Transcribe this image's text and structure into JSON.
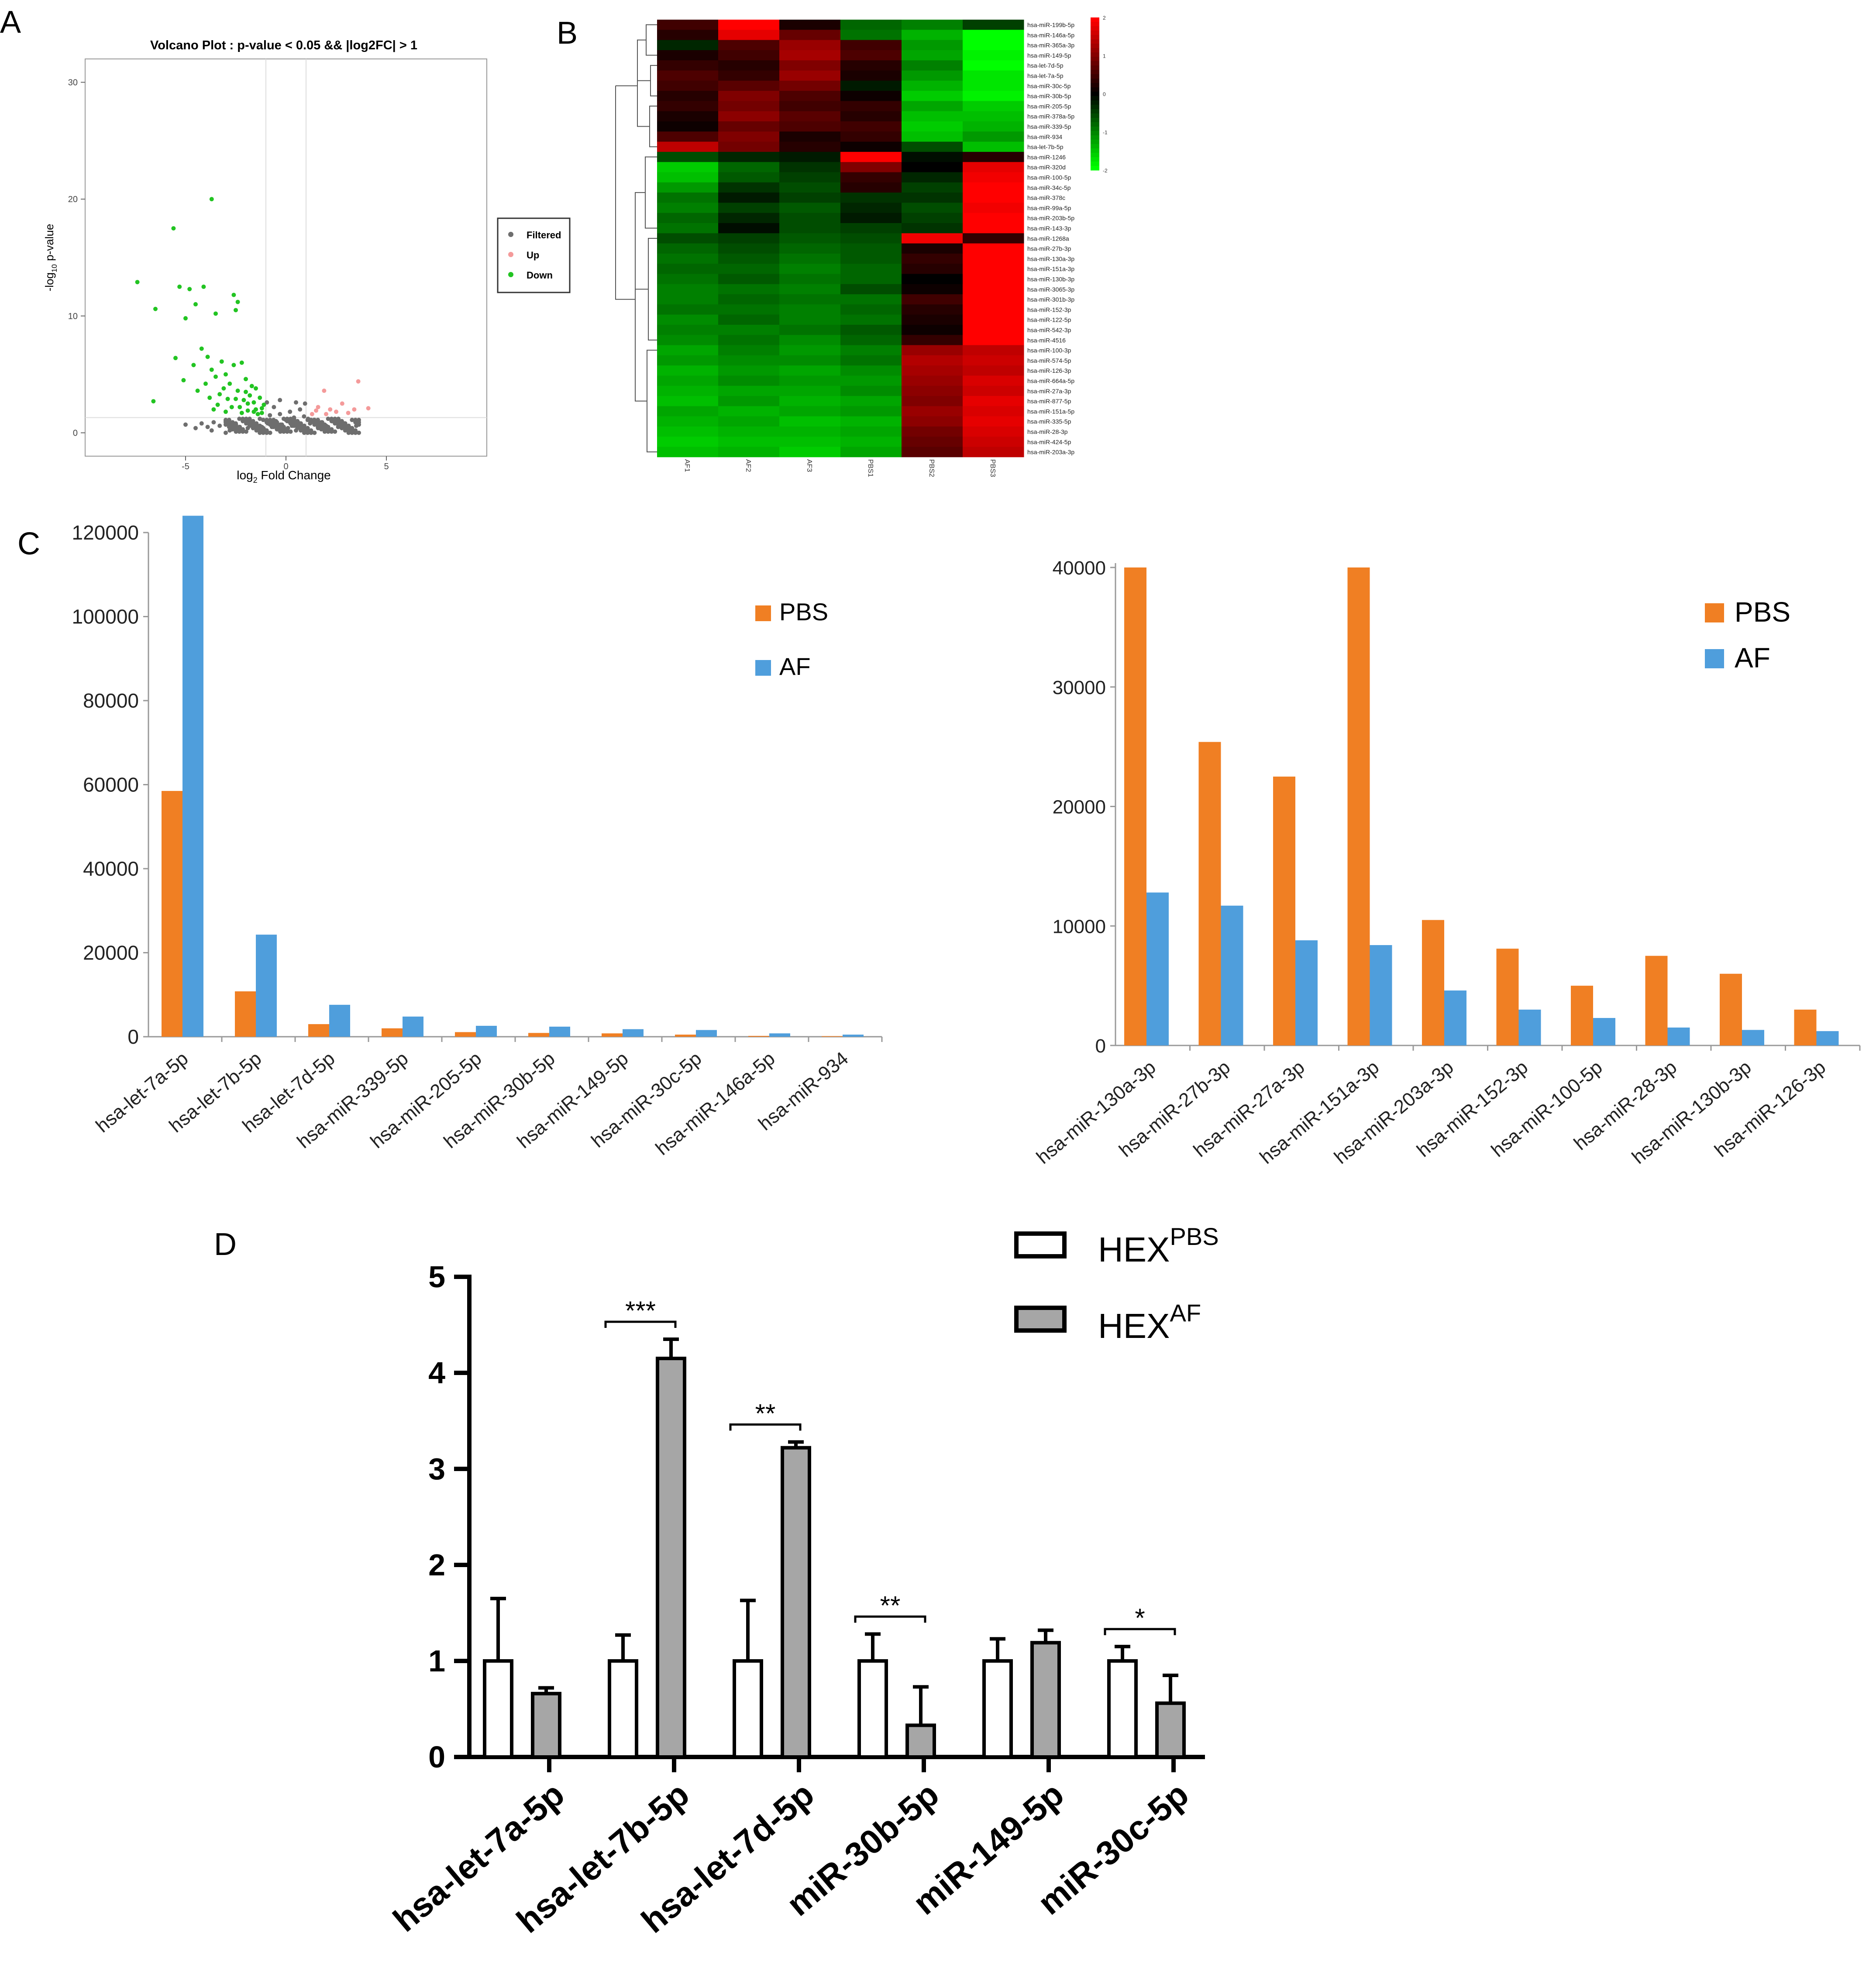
{
  "panel_labels": {
    "a": "A",
    "b": "B",
    "c": "C",
    "d": "D"
  },
  "colors": {
    "pbs_bar": "#F07F23",
    "af_bar": "#4F9EDC",
    "up_point": "#F49A9A",
    "down_point": "#22C422",
    "filtered_point": "#6E6E6E",
    "hex_af_bar": "#A6A6A6",
    "hex_pbs_bar": "#FFFFFF",
    "heatmap_high": "#FF0000",
    "heatmap_mid": "#000000",
    "heatmap_low": "#00FF00"
  },
  "chart_data": [
    {
      "id": "volcano",
      "type": "scatter",
      "title": "Volcano Plot : p-value < 0.05 && |log2FC| > 1",
      "xlabel_main": "log",
      "xlabel_sub": "2",
      "xlabel_rest": " Fold Change",
      "ylabel_main": "-log",
      "ylabel_sub": "10",
      "ylabel_rest": " p-value",
      "xlim": [
        -10,
        10
      ],
      "ylim": [
        -2,
        32
      ],
      "xticks": [
        -5,
        0,
        5
      ],
      "yticks": [
        0,
        10,
        20,
        30
      ],
      "threshold_lines": {
        "x": [
          -1,
          1
        ],
        "y": 1.3
      },
      "legend": [
        "Filtered",
        "Up",
        "Down"
      ],
      "legend_position": "right",
      "down_points": [
        [
          -3.7,
          20.0
        ],
        [
          -5.6,
          17.5
        ],
        [
          -7.4,
          12.9
        ],
        [
          -6.5,
          10.6
        ],
        [
          -5.3,
          12.5
        ],
        [
          -4.8,
          12.3
        ],
        [
          -4.5,
          11.0
        ],
        [
          -5.0,
          9.8
        ],
        [
          -4.1,
          12.5
        ],
        [
          -3.5,
          10.2
        ],
        [
          -2.6,
          11.8
        ],
        [
          -2.4,
          11.2
        ],
        [
          -2.5,
          10.5
        ],
        [
          -5.5,
          6.4
        ],
        [
          -6.6,
          2.7
        ],
        [
          -5.1,
          4.5
        ],
        [
          -4.6,
          5.8
        ],
        [
          -4.2,
          7.2
        ],
        [
          -3.9,
          6.5
        ],
        [
          -3.7,
          5.4
        ],
        [
          -3.5,
          4.8
        ],
        [
          -3.2,
          6.1
        ],
        [
          -3.0,
          5.0
        ],
        [
          -2.8,
          4.2
        ],
        [
          -2.6,
          5.8
        ],
        [
          -2.4,
          3.6
        ],
        [
          -2.2,
          6.0
        ],
        [
          -2.0,
          4.6
        ],
        [
          -1.8,
          3.2
        ],
        [
          -1.6,
          2.6
        ],
        [
          -1.5,
          2.0
        ],
        [
          -1.3,
          3.0
        ],
        [
          -1.2,
          1.7
        ],
        [
          -1.1,
          2.4
        ],
        [
          -4.4,
          3.6
        ],
        [
          -3.8,
          3.0
        ],
        [
          -3.4,
          2.4
        ],
        [
          -3.1,
          3.8
        ],
        [
          -2.9,
          2.9
        ],
        [
          -2.7,
          2.2
        ],
        [
          -2.5,
          2.9
        ],
        [
          -2.3,
          2.2
        ],
        [
          -2.1,
          2.8
        ],
        [
          -1.9,
          1.9
        ],
        [
          -1.7,
          4.0
        ],
        [
          -1.4,
          1.6
        ],
        [
          -4.0,
          4.2
        ],
        [
          -3.3,
          3.3
        ],
        [
          -2.2,
          1.7
        ],
        [
          -1.9,
          2.5
        ],
        [
          -1.6,
          1.8
        ],
        [
          -1.2,
          2.1
        ],
        [
          -3.6,
          2.0
        ],
        [
          -3.0,
          1.8
        ],
        [
          -2.0,
          3.5
        ],
        [
          -1.5,
          3.8
        ]
      ],
      "up_points": [
        [
          1.3,
          1.6
        ],
        [
          1.6,
          2.2
        ],
        [
          1.9,
          3.6
        ],
        [
          2.2,
          2.0
        ],
        [
          2.5,
          1.8
        ],
        [
          2.8,
          2.5
        ],
        [
          3.1,
          1.7
        ],
        [
          3.4,
          2.0
        ],
        [
          3.6,
          4.4
        ],
        [
          4.1,
          2.1
        ],
        [
          1.5,
          1.9
        ],
        [
          2.0,
          1.6
        ]
      ],
      "filtered_points": [
        [
          -4.5,
          0.4
        ],
        [
          -4.2,
          0.8
        ],
        [
          -3.9,
          0.5
        ],
        [
          -3.6,
          0.9
        ],
        [
          -3.3,
          0.6
        ],
        [
          -3.0,
          1.0
        ],
        [
          -2.7,
          0.3
        ],
        [
          -2.5,
          0.8
        ],
        [
          -2.3,
          0.5
        ],
        [
          -2.1,
          1.1
        ],
        [
          -1.9,
          0.4
        ],
        [
          -1.7,
          0.9
        ],
        [
          -1.5,
          0.6
        ],
        [
          -1.3,
          1.2
        ],
        [
          -1.1,
          0.3
        ],
        [
          -0.9,
          0.8
        ],
        [
          -0.8,
          1.5
        ],
        [
          -0.7,
          0.5
        ],
        [
          -0.6,
          2.2
        ],
        [
          -0.5,
          1.0
        ],
        [
          -0.4,
          0.3
        ],
        [
          -0.3,
          1.6
        ],
        [
          -0.2,
          0.7
        ],
        [
          -0.1,
          0.2
        ],
        [
          0.0,
          1.1
        ],
        [
          0.1,
          0.4
        ],
        [
          0.2,
          1.8
        ],
        [
          0.3,
          0.6
        ],
        [
          0.4,
          1.3
        ],
        [
          0.5,
          0.2
        ],
        [
          0.6,
          0.9
        ],
        [
          0.7,
          2.0
        ],
        [
          0.8,
          0.5
        ],
        [
          0.9,
          1.4
        ],
        [
          1.0,
          0.3
        ],
        [
          1.2,
          0.8
        ],
        [
          1.4,
          1.1
        ],
        [
          1.6,
          0.4
        ],
        [
          1.8,
          0.9
        ],
        [
          2.0,
          0.6
        ],
        [
          2.3,
          1.0
        ],
        [
          2.6,
          0.5
        ],
        [
          2.9,
          0.8
        ],
        [
          3.2,
          0.4
        ],
        [
          3.5,
          0.6
        ],
        [
          -5.0,
          0.7
        ],
        [
          -0.95,
          2.6
        ],
        [
          0.95,
          2.5
        ],
        [
          -2.8,
          0.2
        ],
        [
          -1.2,
          0.5
        ],
        [
          0.2,
          0.9
        ],
        [
          1.1,
          1.2
        ],
        [
          -0.3,
          2.8
        ],
        [
          0.5,
          2.6
        ],
        [
          -3.7,
          0.2
        ],
        [
          2.1,
          0.2
        ]
      ]
    },
    {
      "id": "heatmap",
      "type": "heatmap",
      "columns": [
        "AF1",
        "AF2",
        "AF3",
        "PBS1",
        "PBS2",
        "PBS3"
      ],
      "rows": [
        "hsa-miR-199b-5p",
        "hsa-miR-146a-5p",
        "hsa-miR-365a-3p",
        "hsa-miR-149-5p",
        "hsa-let-7d-5p",
        "hsa-let-7a-5p",
        "hsa-miR-30c-5p",
        "hsa-miR-30b-5p",
        "hsa-miR-205-5p",
        "hsa-miR-378a-5p",
        "hsa-miR-339-5p",
        "hsa-miR-934",
        "hsa-let-7b-5p",
        "hsa-miR-1246",
        "hsa-miR-320d",
        "hsa-miR-100-5p",
        "hsa-miR-34c-5p",
        "hsa-miR-378c",
        "hsa-miR-99a-5p",
        "hsa-miR-203b-5p",
        "hsa-miR-143-3p",
        "hsa-miR-1268a",
        "hsa-miR-27b-3p",
        "hsa-miR-130a-3p",
        "hsa-miR-151a-3p",
        "hsa-miR-130b-3p",
        "hsa-miR-3065-3p",
        "hsa-miR-301b-3p",
        "hsa-miR-152-3p",
        "hsa-miR-122-5p",
        "hsa-miR-542-3p",
        "hsa-miR-4516",
        "hsa-miR-100-3p",
        "hsa-miR-574-5p",
        "hsa-miR-126-3p",
        "hsa-miR-664a-5p",
        "hsa-miR-27a-3p",
        "hsa-miR-877-5p",
        "hsa-miR-151a-5p",
        "hsa-miR-335-5p",
        "hsa-miR-28-3p",
        "hsa-miR-424-5p",
        "hsa-miR-203a-3p"
      ],
      "values": [
        [
          0.5,
          2.0,
          0.2,
          -0.8,
          -1.0,
          -0.5
        ],
        [
          0.3,
          1.8,
          0.8,
          -0.9,
          -1.4,
          -2.0
        ],
        [
          -0.3,
          0.6,
          1.2,
          0.5,
          -1.2,
          -2.0
        ],
        [
          0.2,
          0.5,
          1.3,
          0.6,
          -1.3,
          -1.9
        ],
        [
          0.4,
          0.3,
          1.0,
          0.3,
          -1.0,
          -2.0
        ],
        [
          0.6,
          0.4,
          1.2,
          0.2,
          -1.2,
          -1.8
        ],
        [
          0.5,
          0.7,
          0.9,
          -0.2,
          -1.4,
          -1.8
        ],
        [
          0.3,
          1.0,
          0.6,
          0.1,
          -1.6,
          -1.9
        ],
        [
          0.4,
          0.9,
          0.5,
          0.4,
          -1.3,
          -1.6
        ],
        [
          0.2,
          1.1,
          0.7,
          0.3,
          -1.5,
          -1.5
        ],
        [
          0.1,
          0.8,
          0.6,
          0.5,
          -1.6,
          -1.4
        ],
        [
          0.6,
          1.0,
          0.2,
          0.4,
          -1.5,
          -1.2
        ],
        [
          1.5,
          0.9,
          0.3,
          0.1,
          -0.6,
          -1.5
        ],
        [
          -0.6,
          -0.3,
          -0.2,
          2.0,
          -0.1,
          0.3
        ],
        [
          -1.6,
          -0.8,
          -0.4,
          1.0,
          0.0,
          1.8
        ],
        [
          -1.5,
          -0.7,
          -0.5,
          0.4,
          -0.3,
          1.9
        ],
        [
          -1.2,
          -0.4,
          -0.6,
          0.3,
          -0.5,
          2.0
        ],
        [
          -0.9,
          -0.2,
          -0.5,
          -0.4,
          -0.4,
          2.0
        ],
        [
          -1.0,
          -0.5,
          -0.7,
          -0.3,
          -0.6,
          1.9
        ],
        [
          -0.8,
          -0.3,
          -0.6,
          -0.2,
          -0.5,
          2.0
        ],
        [
          -0.9,
          -0.1,
          -0.6,
          -0.5,
          -0.4,
          2.0
        ],
        [
          -0.6,
          -0.5,
          -0.7,
          -0.6,
          1.9,
          0.4
        ],
        [
          -0.8,
          -0.6,
          -0.8,
          -0.7,
          0.2,
          2.0
        ],
        [
          -0.9,
          -0.7,
          -0.9,
          -0.7,
          0.4,
          2.0
        ],
        [
          -0.8,
          -0.8,
          -1.0,
          -0.8,
          0.3,
          2.0
        ],
        [
          -0.9,
          -0.7,
          -0.9,
          -0.8,
          0.0,
          2.0
        ],
        [
          -1.0,
          -0.9,
          -1.0,
          -0.6,
          0.1,
          2.0
        ],
        [
          -1.0,
          -0.8,
          -0.9,
          -0.9,
          0.5,
          2.0
        ],
        [
          -0.9,
          -0.9,
          -1.0,
          -0.8,
          0.3,
          2.0
        ],
        [
          -1.1,
          -0.8,
          -1.0,
          -0.9,
          0.2,
          2.0
        ],
        [
          -1.0,
          -1.0,
          -0.9,
          -0.7,
          0.1,
          2.0
        ],
        [
          -1.1,
          -0.9,
          -1.1,
          -0.8,
          0.4,
          2.0
        ],
        [
          -1.3,
          -1.0,
          -1.2,
          -1.0,
          1.2,
          1.5
        ],
        [
          -1.2,
          -1.1,
          -1.1,
          -0.9,
          1.4,
          1.6
        ],
        [
          -1.4,
          -1.2,
          -1.3,
          -1.1,
          1.3,
          1.5
        ],
        [
          -1.3,
          -1.1,
          -1.2,
          -1.2,
          1.2,
          1.7
        ],
        [
          -1.4,
          -1.3,
          -1.3,
          -1.1,
          1.1,
          1.6
        ],
        [
          -1.5,
          -1.2,
          -1.4,
          -1.3,
          1.0,
          1.8
        ],
        [
          -1.3,
          -1.4,
          -1.3,
          -1.2,
          1.2,
          1.7
        ],
        [
          -1.4,
          -1.3,
          -1.5,
          -1.4,
          1.1,
          1.8
        ],
        [
          -1.5,
          -1.4,
          -1.4,
          -1.3,
          0.9,
          1.7
        ],
        [
          -1.6,
          -1.5,
          -1.5,
          -1.4,
          0.8,
          1.6
        ],
        [
          -1.5,
          -1.4,
          -1.6,
          -1.3,
          0.7,
          1.5
        ]
      ],
      "color_scale": {
        "min": -2,
        "max": 2
      },
      "colorbar_ticks": [
        "2",
        "1",
        "0",
        "-1",
        "-2"
      ],
      "dendrogram": "row"
    },
    {
      "id": "bar-left",
      "type": "bar",
      "categories": [
        "hsa-let-7a-5p",
        "hsa-let-7b-5p",
        "hsa-let-7d-5p",
        "hsa-miR-339-5p",
        "hsa-miR-205-5p",
        "hsa-miR-30b-5p",
        "hsa-miR-149-5p",
        "hsa-miR-30c-5p",
        "hsa-miR-146a-5p",
        "hsa-miR-934"
      ],
      "series": [
        {
          "name": "PBS",
          "values": [
            58500,
            10800,
            3000,
            2000,
            1100,
            900,
            800,
            500,
            200,
            150
          ]
        },
        {
          "name": "AF",
          "values": [
            126000,
            24300,
            7600,
            4800,
            2600,
            2400,
            1800,
            1600,
            800,
            500
          ]
        }
      ],
      "ylim": [
        0,
        120000
      ],
      "yticks": [
        0,
        20000,
        40000,
        60000,
        80000,
        100000,
        120000
      ],
      "legend_position": "top-right"
    },
    {
      "id": "bar-right",
      "type": "bar",
      "categories": [
        "hsa-miR-130a-3p",
        "hsa-miR-27b-3p",
        "hsa-miR-27a-3p",
        "hsa-miR-151a-3p",
        "hsa-miR-203a-3p",
        "hsa-miR-152-3p",
        "hsa-miR-100-5p",
        "hsa-miR-28-3p",
        "hsa-miR-130b-3p",
        "hsa-miR-126-3p"
      ],
      "series": [
        {
          "name": "PBS",
          "values": [
            40000,
            25400,
            22500,
            40000,
            10500,
            8100,
            5000,
            7500,
            6000,
            3000
          ]
        },
        {
          "name": "AF",
          "values": [
            12800,
            11700,
            8800,
            8400,
            4600,
            3000,
            2300,
            1500,
            1300,
            1200
          ]
        }
      ],
      "ylim": [
        0,
        40000
      ],
      "yticks": [
        0,
        10000,
        20000,
        30000,
        40000
      ],
      "legend_position": "top-right"
    },
    {
      "id": "bar-d",
      "type": "bar",
      "categories": [
        "hsa-let-7a-5p",
        "hsa-let-7b-5p",
        "hsa-let-7d-5p",
        "miR-30b-5p",
        "miR-149-5p",
        "miR-30c-5p"
      ],
      "series": [
        {
          "name": "HEX",
          "name_sup": "PBS",
          "values": [
            1.0,
            1.0,
            1.0,
            1.0,
            1.0,
            1.0
          ],
          "errors": [
            0.65,
            0.27,
            0.63,
            0.28,
            0.23,
            0.15
          ]
        },
        {
          "name": "HEX",
          "name_sup": "AF",
          "values": [
            0.66,
            4.15,
            3.22,
            0.33,
            1.19,
            0.56
          ],
          "errors": [
            0.06,
            0.2,
            0.06,
            0.4,
            0.13,
            0.29
          ]
        }
      ],
      "significance": [
        "",
        "***",
        "**",
        "**",
        "",
        "*"
      ],
      "ylim": [
        0,
        5
      ],
      "yticks": [
        0,
        1,
        2,
        3,
        4,
        5
      ],
      "legend_position": "top-right"
    }
  ]
}
